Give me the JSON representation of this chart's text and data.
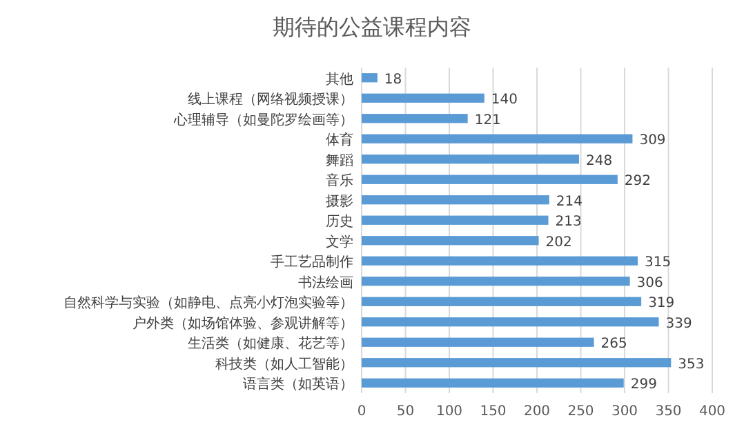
{
  "chart_data": {
    "type": "bar",
    "orientation": "horizontal",
    "title": "期待的公益课程内容",
    "categories": [
      "其他",
      "线上课程（网络视频授课）",
      "心理辅导（如曼陀罗绘画等）",
      "体育",
      "舞蹈",
      "音乐",
      "摄影",
      "历史",
      "文学",
      "手工艺品制作",
      "书法绘画",
      "自然科学与实验（如静电、点亮小灯泡实验等）",
      "户外类（如场馆体验、参观讲解等）",
      "生活类（如健康、花艺等）",
      "科技类（如人工智能）",
      "语言类（如英语）"
    ],
    "values": [
      18,
      140,
      121,
      309,
      248,
      292,
      214,
      213,
      202,
      315,
      306,
      319,
      339,
      265,
      353,
      299
    ],
    "color": "#5b9bd5",
    "xlim": [
      0,
      400
    ],
    "xticks": [
      0,
      50,
      100,
      150,
      200,
      250,
      300,
      350,
      400
    ],
    "grid": "x",
    "data_labels": true
  }
}
